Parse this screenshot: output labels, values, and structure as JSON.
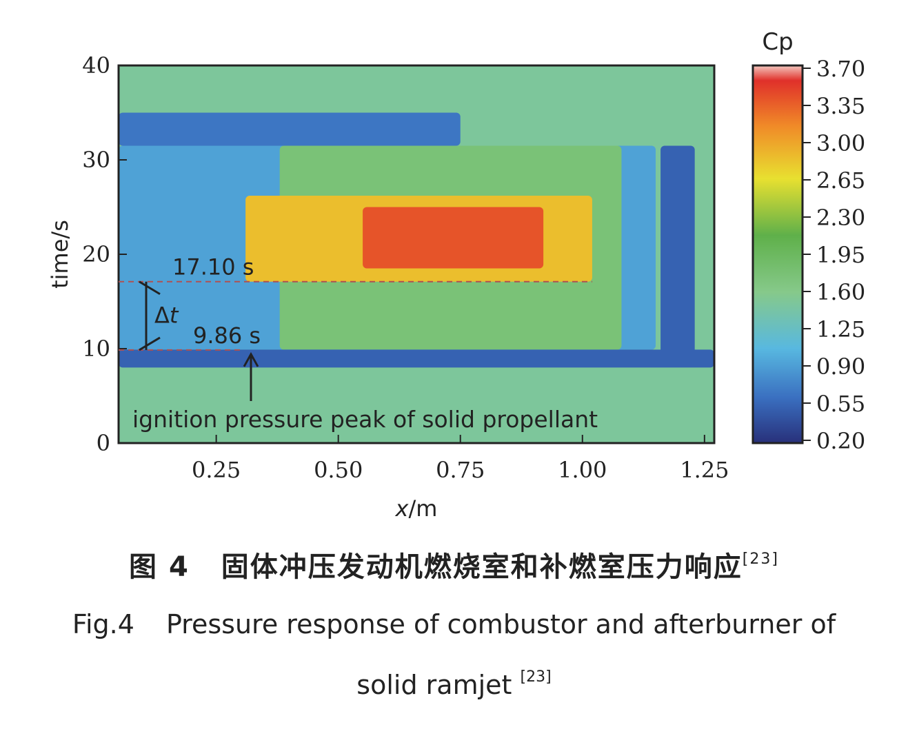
{
  "chart_data": {
    "type": "heatmap",
    "xlabel_var": "x",
    "xlabel_unit": "/m",
    "ylabel": "time/s",
    "x_ticks": [
      "0.25",
      "0.50",
      "0.75",
      "1.00",
      "1.25"
    ],
    "x_tick_values": [
      0.25,
      0.5,
      0.75,
      1.0,
      1.25
    ],
    "y_ticks": [
      "0",
      "10",
      "20",
      "30",
      "40"
    ],
    "y_tick_values": [
      0,
      10,
      20,
      30,
      40
    ],
    "xlim": [
      0.05,
      1.27
    ],
    "ylim": [
      0,
      40
    ],
    "colorbar": {
      "title": "Cp",
      "ticks": [
        "3.70",
        "3.35",
        "3.00",
        "2.65",
        "2.30",
        "1.95",
        "1.60",
        "1.25",
        "0.90",
        "0.55",
        "0.20"
      ],
      "range": [
        0.2,
        3.7
      ],
      "colors": [
        "#28307a",
        "#3a6fc0",
        "#58b8e0",
        "#86c98a",
        "#5fb04a",
        "#e8e030",
        "#f08a28",
        "#e0302a"
      ]
    },
    "regions": [
      {
        "x": [
          0.05,
          1.27
        ],
        "t": [
          0,
          40
        ],
        "cp": 1.6
      },
      {
        "x": [
          0.05,
          0.75
        ],
        "t": [
          31.5,
          35
        ],
        "cp": 0.75
      },
      {
        "x": [
          0.05,
          1.15
        ],
        "t": [
          9.9,
          31.5
        ],
        "cp": 1.05
      },
      {
        "x": [
          0.38,
          1.08
        ],
        "t": [
          9.9,
          31.5
        ],
        "cp": 1.85
      },
      {
        "x": [
          0.05,
          1.27
        ],
        "t": [
          8,
          9.9
        ],
        "cp": 0.6
      },
      {
        "x": [
          0.31,
          1.02
        ],
        "t": [
          17.1,
          26.2
        ],
        "cp": 2.9
      },
      {
        "x": [
          0.55,
          0.92
        ],
        "t": [
          18.5,
          25
        ],
        "cp": 3.5
      },
      {
        "x": [
          1.16,
          1.23
        ],
        "t": [
          9.5,
          31.5
        ],
        "cp": 0.6
      }
    ],
    "annotations": {
      "t1_label": "17.10 s",
      "t1_value": 17.1,
      "t2_label": "9.86 s",
      "t2_value": 9.86,
      "delta_symbol": "Δ",
      "delta_var": "t",
      "arrow_text": "ignition pressure peak of solid propellant"
    }
  },
  "caption": {
    "cn_label": "图 4",
    "cn_text": "固体冲压发动机燃烧室和补燃室压力响应",
    "cn_ref": "[23]",
    "en_label": "Fig.4",
    "en_text": "Pressure response of combustor and afterburner of",
    "en_text2": "solid ramjet",
    "en_ref": "[23]"
  }
}
